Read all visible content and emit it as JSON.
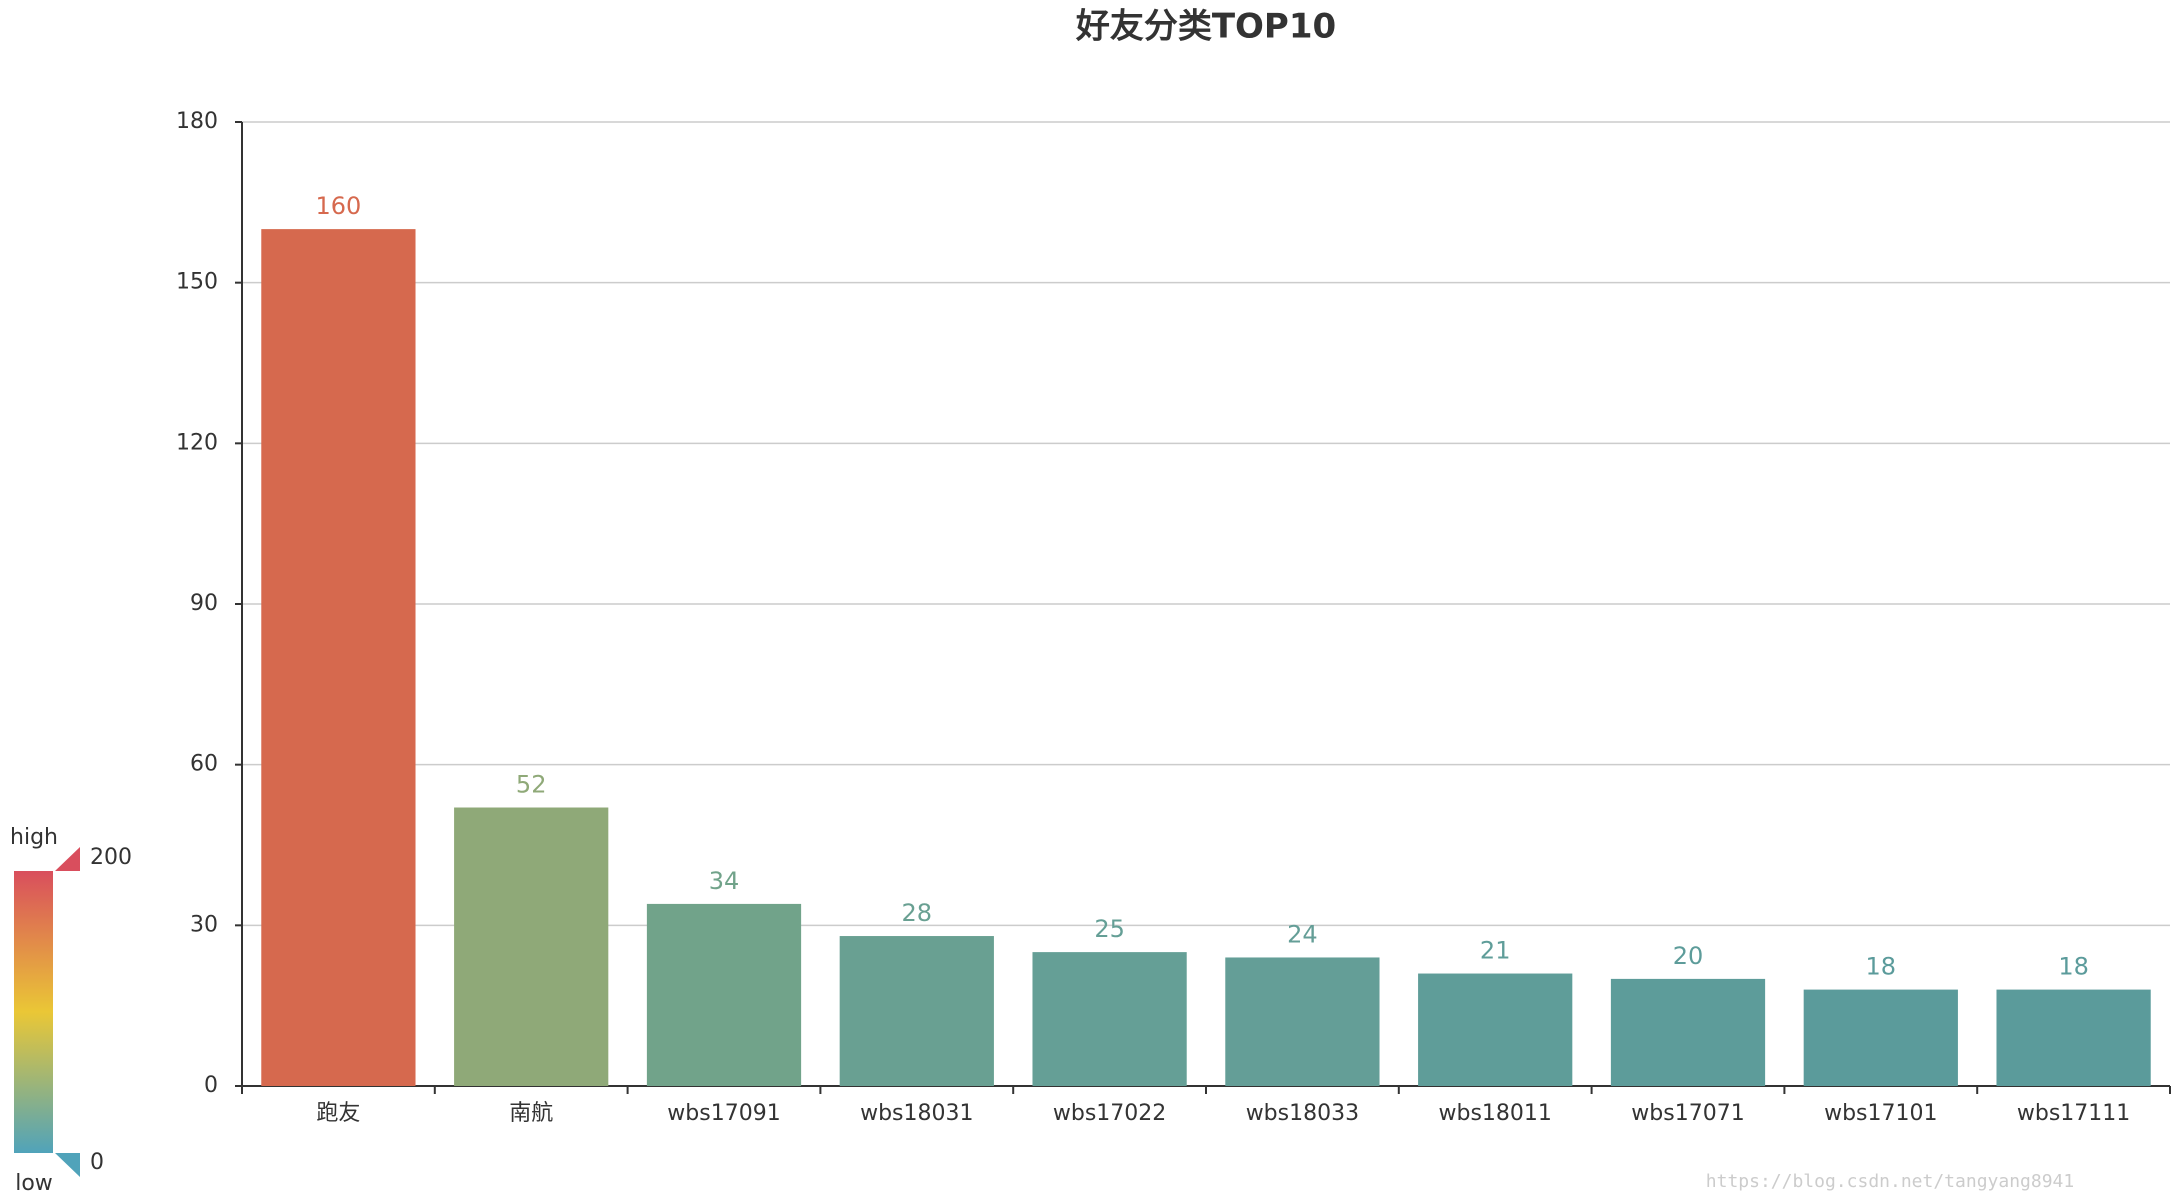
{
  "chart_data": {
    "type": "bar",
    "title": "好友分类TOP10",
    "categories": [
      "跑友",
      "南航",
      "wbs17091",
      "wbs18031",
      "wbs17022",
      "wbs18033",
      "wbs18011",
      "wbs17071",
      "wbs17101",
      "wbs17111"
    ],
    "values": [
      160,
      52,
      34,
      28,
      25,
      24,
      21,
      20,
      18,
      18
    ],
    "colors": [
      "#d6694e",
      "#8fa978",
      "#71a38a",
      "#69a092",
      "#659f96",
      "#649e97",
      "#5f9d99",
      "#5d9c9a",
      "#5b9b9b",
      "#5b9b9b"
    ],
    "ylim": [
      0,
      180
    ],
    "yticks": [
      0,
      30,
      60,
      90,
      120,
      150,
      180
    ],
    "grid": true,
    "visual_map": {
      "min": 0,
      "max": 200,
      "high_text": "high",
      "low_text": "low",
      "colors": [
        "#d94e5d",
        "#eac736",
        "#50a3ba"
      ]
    },
    "watermark": "https://blog.csdn.net/tangyang8941"
  }
}
